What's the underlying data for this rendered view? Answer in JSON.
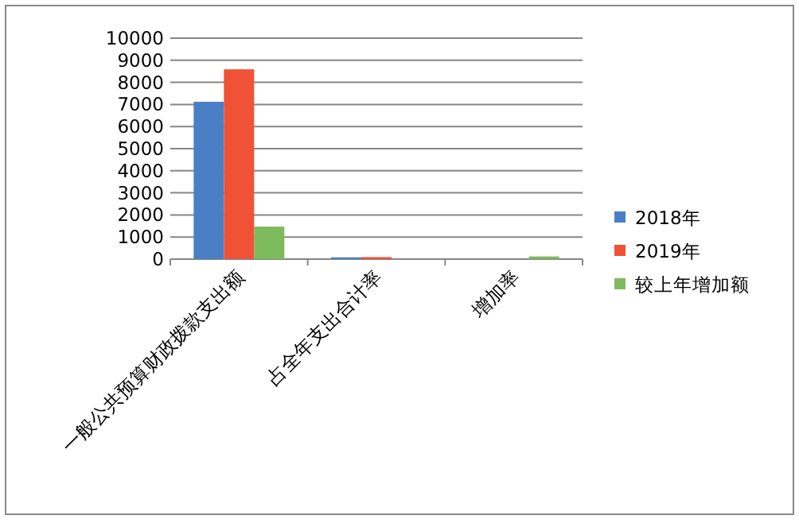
{
  "chart_data": {
    "type": "bar",
    "categories": [
      "一般公共预算财政拨款支出额",
      "占全年支出合计率",
      "增加率"
    ],
    "series": [
      {
        "name": "2018年",
        "color": "#4a7fc6",
        "values": [
          7120,
          80,
          null
        ]
      },
      {
        "name": "2019年",
        "color": "#f05237",
        "values": [
          8590,
          90,
          null
        ]
      },
      {
        "name": "较上年增加额",
        "color": "#7dbb5c",
        "values": [
          1470,
          null,
          120
        ]
      }
    ],
    "ylim": [
      0,
      10000
    ],
    "yticks": [
      0,
      1000,
      2000,
      3000,
      4000,
      5000,
      6000,
      7000,
      8000,
      9000,
      10000
    ],
    "grid": "y",
    "legend": "right"
  }
}
